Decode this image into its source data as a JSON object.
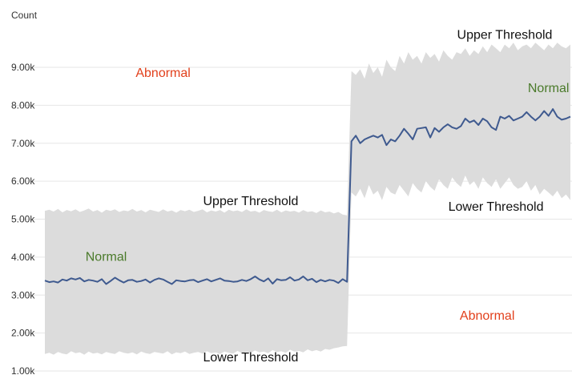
{
  "chart_data": {
    "type": "line",
    "ylabel": "Count",
    "ylim": [
      1000,
      9800
    ],
    "xlim": [
      0,
      120
    ],
    "grid": true,
    "y_ticks": [
      {
        "value": 1000,
        "label": "1.00k"
      },
      {
        "value": 2000,
        "label": "2.00k"
      },
      {
        "value": 3000,
        "label": "3.00k"
      },
      {
        "value": 4000,
        "label": "4.00k"
      },
      {
        "value": 5000,
        "label": "5.00k"
      },
      {
        "value": 6000,
        "label": "6.00k"
      },
      {
        "value": 7000,
        "label": "7.00k"
      },
      {
        "value": 8000,
        "label": "8.00k"
      },
      {
        "value": 9000,
        "label": "9.00k"
      }
    ],
    "series": [
      {
        "kind": "line",
        "color": "#3f5a8f",
        "x": [
          0,
          1,
          2,
          3,
          4,
          5,
          6,
          7,
          8,
          9,
          10,
          11,
          12,
          13,
          14,
          15,
          16,
          17,
          18,
          19,
          20,
          21,
          22,
          23,
          24,
          25,
          26,
          27,
          28,
          29,
          30,
          31,
          32,
          33,
          34,
          35,
          36,
          37,
          38,
          39,
          40,
          41,
          42,
          43,
          44,
          45,
          46,
          47,
          48,
          49,
          50,
          51,
          52,
          53,
          54,
          55,
          56,
          57,
          58,
          59,
          60,
          61,
          62,
          63,
          64,
          65,
          66,
          67,
          68,
          69,
          70,
          71,
          72,
          73,
          74,
          75,
          76,
          77,
          78,
          79,
          80,
          81,
          82,
          83,
          84,
          85,
          86,
          87,
          88,
          89,
          90,
          91,
          92,
          93,
          94,
          95,
          96,
          97,
          98,
          99,
          100,
          101,
          102,
          103,
          104,
          105,
          106,
          107,
          108,
          109,
          110,
          111,
          112,
          113,
          114,
          115,
          116,
          117,
          118,
          119,
          120
        ],
        "values": [
          3380,
          3340,
          3360,
          3330,
          3410,
          3380,
          3440,
          3410,
          3450,
          3360,
          3400,
          3380,
          3350,
          3420,
          3290,
          3370,
          3460,
          3390,
          3330,
          3390,
          3400,
          3350,
          3370,
          3410,
          3330,
          3400,
          3440,
          3410,
          3350,
          3290,
          3390,
          3370,
          3360,
          3390,
          3400,
          3340,
          3380,
          3420,
          3360,
          3400,
          3440,
          3380,
          3370,
          3350,
          3360,
          3400,
          3370,
          3420,
          3490,
          3410,
          3360,
          3440,
          3300,
          3420,
          3390,
          3400,
          3470,
          3380,
          3410,
          3490,
          3390,
          3430,
          3340,
          3400,
          3360,
          3400,
          3380,
          3320,
          3420,
          3350,
          7050,
          7200,
          7000,
          7100,
          7150,
          7200,
          7150,
          7220,
          6950,
          7100,
          7050,
          7200,
          7380,
          7250,
          7100,
          7380,
          7400,
          7420,
          7150,
          7400,
          7300,
          7420,
          7500,
          7420,
          7380,
          7450,
          7650,
          7550,
          7600,
          7480,
          7650,
          7580,
          7420,
          7350,
          7700,
          7650,
          7720,
          7600,
          7650,
          7700,
          7820,
          7700,
          7600,
          7700,
          7850,
          7720,
          7900,
          7700,
          7620,
          7650,
          7700
        ]
      },
      {
        "kind": "band-upper",
        "values": [
          5220,
          5250,
          5200,
          5270,
          5180,
          5240,
          5210,
          5260,
          5190,
          5230,
          5280,
          5200,
          5240,
          5170,
          5250,
          5220,
          5260,
          5190,
          5230,
          5210,
          5270,
          5200,
          5240,
          5180,
          5250,
          5220,
          5190,
          5260,
          5200,
          5230,
          5170,
          5240,
          5210,
          5250,
          5190,
          5220,
          5260,
          5180,
          5230,
          5200,
          5240,
          5170,
          5250,
          5210,
          5230,
          5190,
          5260,
          5200,
          5220,
          5170,
          5240,
          5210,
          5190,
          5250,
          5180,
          5230,
          5200,
          5220,
          5170,
          5240,
          5190,
          5210,
          5160,
          5230,
          5180,
          5200,
          5150,
          5190,
          5120,
          5100,
          8900,
          8800,
          8950,
          8700,
          9100,
          8850,
          9000,
          8750,
          9200,
          9000,
          8900,
          9300,
          9100,
          9400,
          9200,
          9300,
          9100,
          9400,
          9250,
          9350,
          9150,
          9450,
          9300,
          9200,
          9400,
          9350,
          9500,
          9300,
          9450,
          9350,
          9550,
          9400,
          9600,
          9500,
          9400,
          9600,
          9500,
          9650,
          9450,
          9550,
          9600,
          9500,
          9650,
          9550,
          9450,
          9600,
          9500,
          9650,
          9550,
          9500,
          9600
        ]
      },
      {
        "kind": "band-lower",
        "values": [
          1450,
          1480,
          1430,
          1500,
          1460,
          1440,
          1520,
          1470,
          1490,
          1430,
          1510,
          1460,
          1480,
          1440,
          1500,
          1470,
          1450,
          1520,
          1480,
          1460,
          1490,
          1440,
          1510,
          1470,
          1450,
          1500,
          1480,
          1460,
          1520,
          1440,
          1490,
          1470,
          1510,
          1450,
          1480,
          1500,
          1460,
          1520,
          1470,
          1490,
          1450,
          1510,
          1480,
          1460,
          1530,
          1470,
          1500,
          1480,
          1540,
          1490,
          1510,
          1470,
          1550,
          1500,
          1520,
          1480,
          1560,
          1510,
          1530,
          1490,
          1570,
          1520,
          1550,
          1510,
          1580,
          1560,
          1600,
          1620,
          1650,
          1660,
          5700,
          5600,
          5800,
          5550,
          5900,
          5650,
          5750,
          5500,
          5850,
          5700,
          5650,
          5900,
          5750,
          5600,
          5950,
          5800,
          5700,
          6000,
          5850,
          5750,
          6050,
          5900,
          5800,
          6100,
          5950,
          5850,
          6150,
          5900,
          6000,
          5800,
          6100,
          5950,
          5850,
          6050,
          5800,
          5950,
          6100,
          5900,
          5800,
          5850,
          6000,
          5750,
          5900,
          5650,
          5800,
          5700,
          5600,
          5750,
          5550,
          5650,
          5500
        ]
      }
    ],
    "annotations": [
      {
        "text": "Upper Threshold",
        "x": 105,
        "y": 9750,
        "color": "#111111",
        "anchor": "middle"
      },
      {
        "text": "Abnormal",
        "x": 27,
        "y": 8750,
        "color": "#e2401c",
        "anchor": "middle"
      },
      {
        "text": "Normal",
        "x": 115,
        "y": 8350,
        "color": "#4a7a2a",
        "anchor": "middle"
      },
      {
        "text": "Upper Threshold",
        "x": 47,
        "y": 5370,
        "color": "#111111",
        "anchor": "middle"
      },
      {
        "text": "Lower Threshold",
        "x": 103,
        "y": 5220,
        "color": "#111111",
        "anchor": "middle"
      },
      {
        "text": "Normal",
        "x": 14,
        "y": 3900,
        "color": "#4a7a2a",
        "anchor": "middle"
      },
      {
        "text": "Abnormal",
        "x": 101,
        "y": 2350,
        "color": "#e2401c",
        "anchor": "middle"
      },
      {
        "text": "Lower Threshold",
        "x": 47,
        "y": 1250,
        "color": "#111111",
        "anchor": "middle"
      }
    ],
    "colors": {
      "band": "#dcdcdc",
      "grid": "#e6e6e6",
      "line": "#3f5a8f"
    }
  }
}
